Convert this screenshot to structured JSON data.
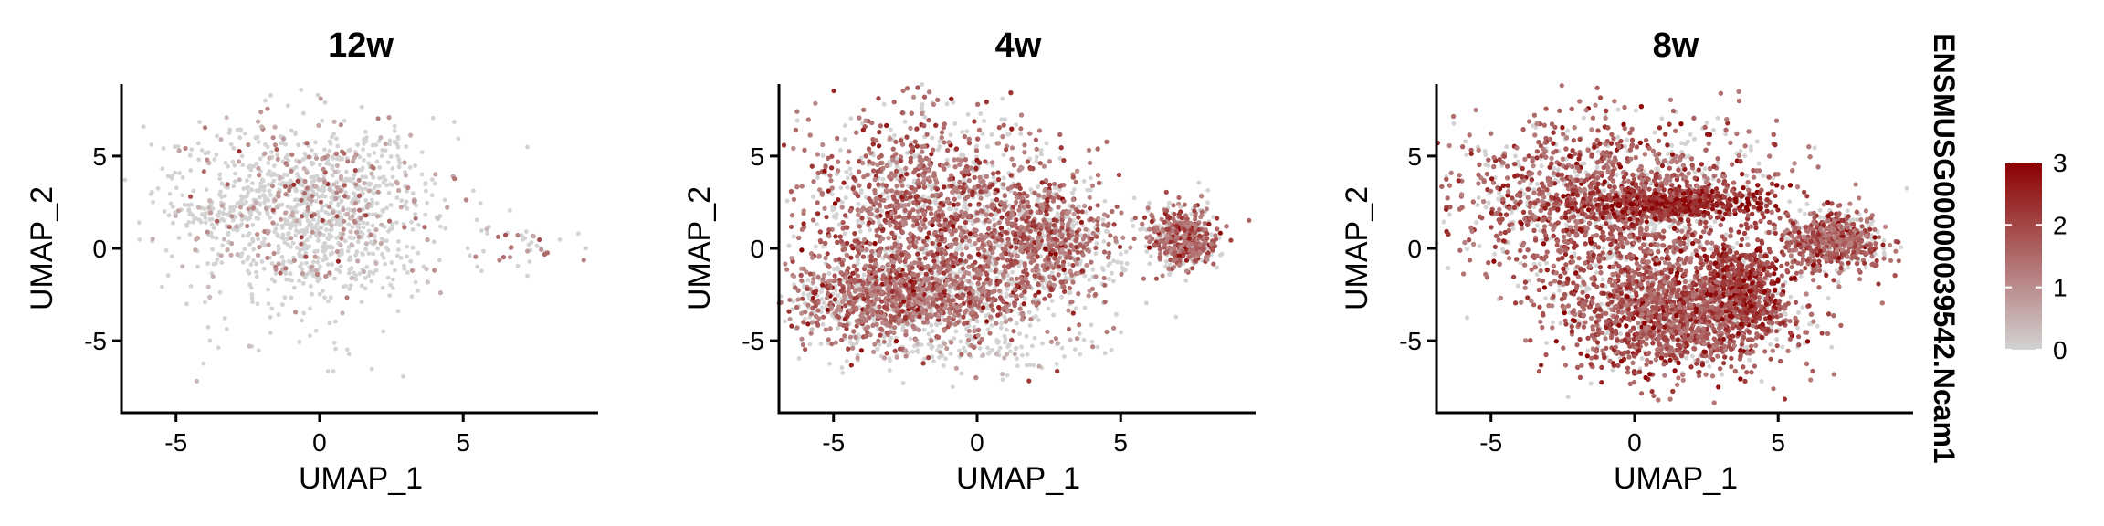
{
  "colors": {
    "low": "#d3d3d3",
    "high": "#8b0000"
  },
  "chart_data": {
    "type": "scatter",
    "legend": {
      "title": "ENSMUSG00000039542.Ncam1",
      "ticks": [
        0,
        1,
        2,
        3
      ],
      "range": [
        0,
        3
      ],
      "placement": "right"
    },
    "panels": [
      {
        "title": "12w",
        "xlabel": "UMAP_1",
        "ylabel": "UMAP_2",
        "xlim": [
          -6.9,
          9.7
        ],
        "ylim": [
          -8.9,
          8.9
        ],
        "xticks": [
          -5,
          0,
          5
        ],
        "yticks": [
          -5,
          0,
          5
        ],
        "clusters": [
          {
            "cx": -0.5,
            "cy": 3.0,
            "sx": 2.2,
            "sy": 2.0,
            "n": 900,
            "mean": 0.35
          },
          {
            "cx": 0.0,
            "cy": -0.5,
            "sx": 2.0,
            "sy": 1.6,
            "n": 300,
            "mean": 0.2
          },
          {
            "cx": -3.5,
            "cy": 1.8,
            "sx": 0.8,
            "sy": 0.4,
            "n": 60,
            "mean": 0.2
          },
          {
            "cx": 7.0,
            "cy": 0.3,
            "sx": 0.8,
            "sy": 0.7,
            "n": 40,
            "mean": 0.6
          },
          {
            "cx": -1.0,
            "cy": -5.5,
            "sx": 2.0,
            "sy": 0.8,
            "n": 18,
            "mean": 0.15
          }
        ]
      },
      {
        "title": "4w",
        "xlabel": "UMAP_1",
        "ylabel": "UMAP_2",
        "xlim": [
          -6.9,
          9.7
        ],
        "ylim": [
          -8.9,
          8.9
        ],
        "xticks": [
          -5,
          0,
          5
        ],
        "yticks": [
          -5,
          0,
          5
        ],
        "clusters": [
          {
            "cx": -1.5,
            "cy": 1.5,
            "sx": 2.3,
            "sy": 2.8,
            "n": 3200,
            "mean": 1.0
          },
          {
            "cx": -2.5,
            "cy": -2.8,
            "sx": 2.2,
            "sy": 1.0,
            "n": 1200,
            "mean": 0.9
          },
          {
            "cx": 2.5,
            "cy": 0.5,
            "sx": 1.2,
            "sy": 1.6,
            "n": 700,
            "mean": 0.9
          },
          {
            "cx": 7.2,
            "cy": 0.5,
            "sx": 0.6,
            "sy": 0.8,
            "n": 500,
            "mean": 1.0
          },
          {
            "cx": -1.0,
            "cy": -5.5,
            "sx": 2.2,
            "sy": 0.7,
            "n": 150,
            "mean": 0.3
          }
        ]
      },
      {
        "title": "8w",
        "xlabel": "UMAP_1",
        "ylabel": "UMAP_2",
        "xlim": [
          -6.9,
          9.7
        ],
        "ylim": [
          -8.9,
          8.9
        ],
        "xticks": [
          -5,
          0,
          5
        ],
        "yticks": [
          -5,
          0,
          5
        ],
        "clusters": [
          {
            "cx": -0.5,
            "cy": 2.5,
            "sx": 2.8,
            "sy": 2.2,
            "n": 3600,
            "mean": 1.1
          },
          {
            "cx": 1.2,
            "cy": 2.4,
            "sx": 1.8,
            "sy": 0.4,
            "n": 500,
            "mean": 1.9
          },
          {
            "cx": 1.5,
            "cy": -3.5,
            "sx": 2.0,
            "sy": 1.6,
            "n": 2400,
            "mean": 1.2
          },
          {
            "cx": 3.8,
            "cy": -2.2,
            "sx": 0.7,
            "sy": 1.2,
            "n": 500,
            "mean": 1.6
          },
          {
            "cx": 7.0,
            "cy": 0.4,
            "sx": 0.8,
            "sy": 0.8,
            "n": 600,
            "mean": 1.1
          }
        ]
      }
    ]
  }
}
